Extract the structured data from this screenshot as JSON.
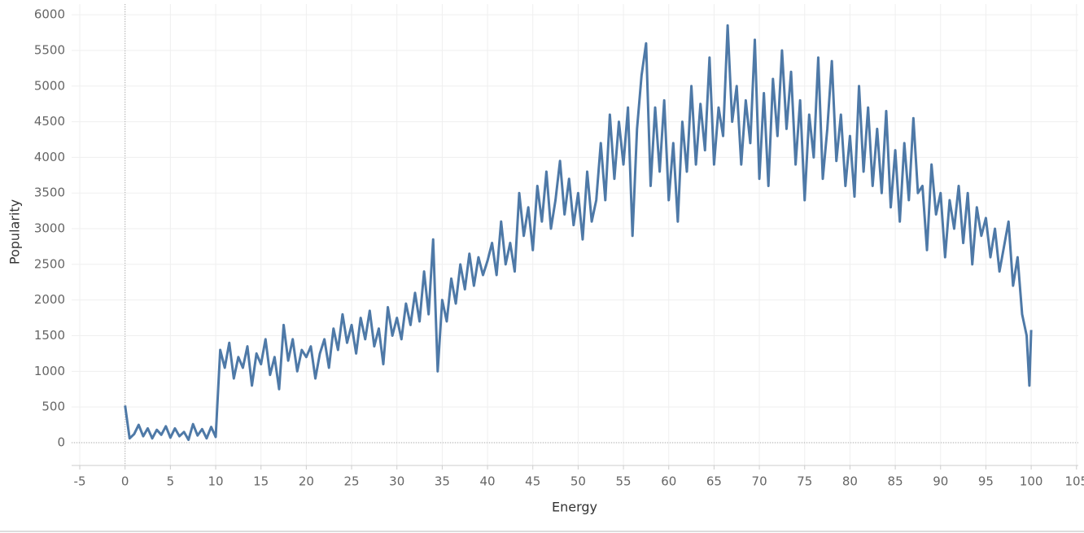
{
  "chart_data": {
    "type": "line",
    "xlabel": "Energy",
    "ylabel": "Popularity",
    "xlim": [
      -5.9,
      105.2
    ],
    "ylim": [
      -320,
      6150
    ],
    "xticks": [
      -5,
      0,
      5,
      10,
      15,
      20,
      25,
      30,
      35,
      40,
      45,
      50,
      55,
      60,
      65,
      70,
      75,
      80,
      85,
      90,
      95,
      100,
      105
    ],
    "yticks": [
      0,
      500,
      1000,
      1500,
      2000,
      2500,
      3000,
      3500,
      4000,
      4500,
      5000,
      5500,
      6000
    ],
    "grid": true,
    "x": [
      0,
      0.5,
      1,
      1.5,
      2,
      2.5,
      3,
      3.5,
      4,
      4.5,
      5,
      5.5,
      6,
      6.5,
      7,
      7.5,
      8,
      8.5,
      9,
      9.5,
      10,
      10.5,
      11,
      11.5,
      12,
      12.5,
      13,
      13.5,
      14,
      14.5,
      15,
      15.5,
      16,
      16.5,
      17,
      17.5,
      18,
      18.5,
      19,
      19.5,
      20,
      20.5,
      21,
      21.5,
      22,
      22.5,
      23,
      23.5,
      24,
      24.5,
      25,
      25.5,
      26,
      26.5,
      27,
      27.5,
      28,
      28.5,
      29,
      29.5,
      30,
      30.5,
      31,
      31.5,
      32,
      32.5,
      33,
      33.5,
      34,
      34.5,
      35,
      35.5,
      36,
      36.5,
      37,
      37.5,
      38,
      38.5,
      39,
      39.5,
      40,
      40.5,
      41,
      41.5,
      42,
      42.5,
      43,
      43.5,
      44,
      44.5,
      45,
      45.5,
      46,
      46.5,
      47,
      47.5,
      48,
      48.5,
      49,
      49.5,
      50,
      50.5,
      51,
      51.5,
      52,
      52.5,
      53,
      53.5,
      54,
      54.5,
      55,
      55.5,
      56,
      56.5,
      57,
      57.5,
      58,
      58.5,
      59,
      59.5,
      60,
      60.5,
      61,
      61.5,
      62,
      62.5,
      63,
      63.5,
      64,
      64.5,
      65,
      65.5,
      66,
      66.5,
      67,
      67.5,
      68,
      68.5,
      69,
      69.5,
      70,
      70.5,
      71,
      71.5,
      72,
      72.5,
      73,
      73.5,
      74,
      74.5,
      75,
      75.5,
      76,
      76.5,
      77,
      77.5,
      78,
      78.5,
      79,
      79.5,
      80,
      80.5,
      81,
      81.5,
      82,
      82.5,
      83,
      83.5,
      84,
      84.5,
      85,
      85.5,
      86,
      86.5,
      87,
      87.5,
      88,
      88.5,
      89,
      89.5,
      90,
      90.5,
      91,
      91.5,
      92,
      92.5,
      93,
      93.5,
      94,
      94.5,
      95,
      95.5,
      96,
      96.5,
      97,
      97.5,
      98,
      98.5,
      99,
      99.5,
      99.8,
      100
    ],
    "series": [
      {
        "name": "Popularity",
        "color": "#4e79a7",
        "values": [
          520,
          60,
          120,
          250,
          90,
          200,
          60,
          180,
          110,
          230,
          70,
          200,
          90,
          150,
          40,
          260,
          100,
          190,
          60,
          220,
          80,
          1300,
          1050,
          1400,
          900,
          1200,
          1050,
          1350,
          800,
          1250,
          1100,
          1450,
          950,
          1200,
          750,
          1650,
          1150,
          1450,
          1000,
          1300,
          1200,
          1350,
          900,
          1250,
          1450,
          1050,
          1600,
          1300,
          1800,
          1400,
          1650,
          1250,
          1750,
          1450,
          1850,
          1350,
          1600,
          1100,
          1900,
          1500,
          1750,
          1450,
          1950,
          1650,
          2100,
          1700,
          2400,
          1800,
          2850,
          1000,
          2000,
          1700,
          2300,
          1950,
          2500,
          2150,
          2650,
          2200,
          2600,
          2350,
          2550,
          2800,
          2350,
          3100,
          2500,
          2800,
          2400,
          3500,
          2900,
          3300,
          2700,
          3600,
          3100,
          3800,
          3000,
          3400,
          3950,
          3200,
          3700,
          3050,
          3500,
          2850,
          3800,
          3100,
          3400,
          4200,
          3400,
          4600,
          3700,
          4500,
          3900,
          4700,
          2900,
          4400,
          5150,
          5600,
          3600,
          4700,
          3800,
          4800,
          3400,
          4200,
          3100,
          4500,
          3800,
          5000,
          3900,
          4750,
          4100,
          5400,
          3900,
          4700,
          4300,
          5850,
          4500,
          5000,
          3900,
          4800,
          4200,
          5650,
          3700,
          4900,
          3600,
          5100,
          4300,
          5500,
          4400,
          5200,
          3900,
          4800,
          3400,
          4600,
          4000,
          5400,
          3700,
          4400,
          5350,
          3950,
          4600,
          3600,
          4300,
          3450,
          5000,
          3800,
          4700,
          3600,
          4400,
          3500,
          4650,
          3300,
          4100,
          3100,
          4200,
          3400,
          4550,
          3500,
          3600,
          2700,
          3900,
          3200,
          3500,
          2600,
          3400,
          3000,
          3600,
          2800,
          3500,
          2500,
          3300,
          2900,
          3150,
          2600,
          3000,
          2400,
          2750,
          3100,
          2200,
          2600,
          1800,
          1500,
          800,
          1580
        ]
      }
    ]
  }
}
